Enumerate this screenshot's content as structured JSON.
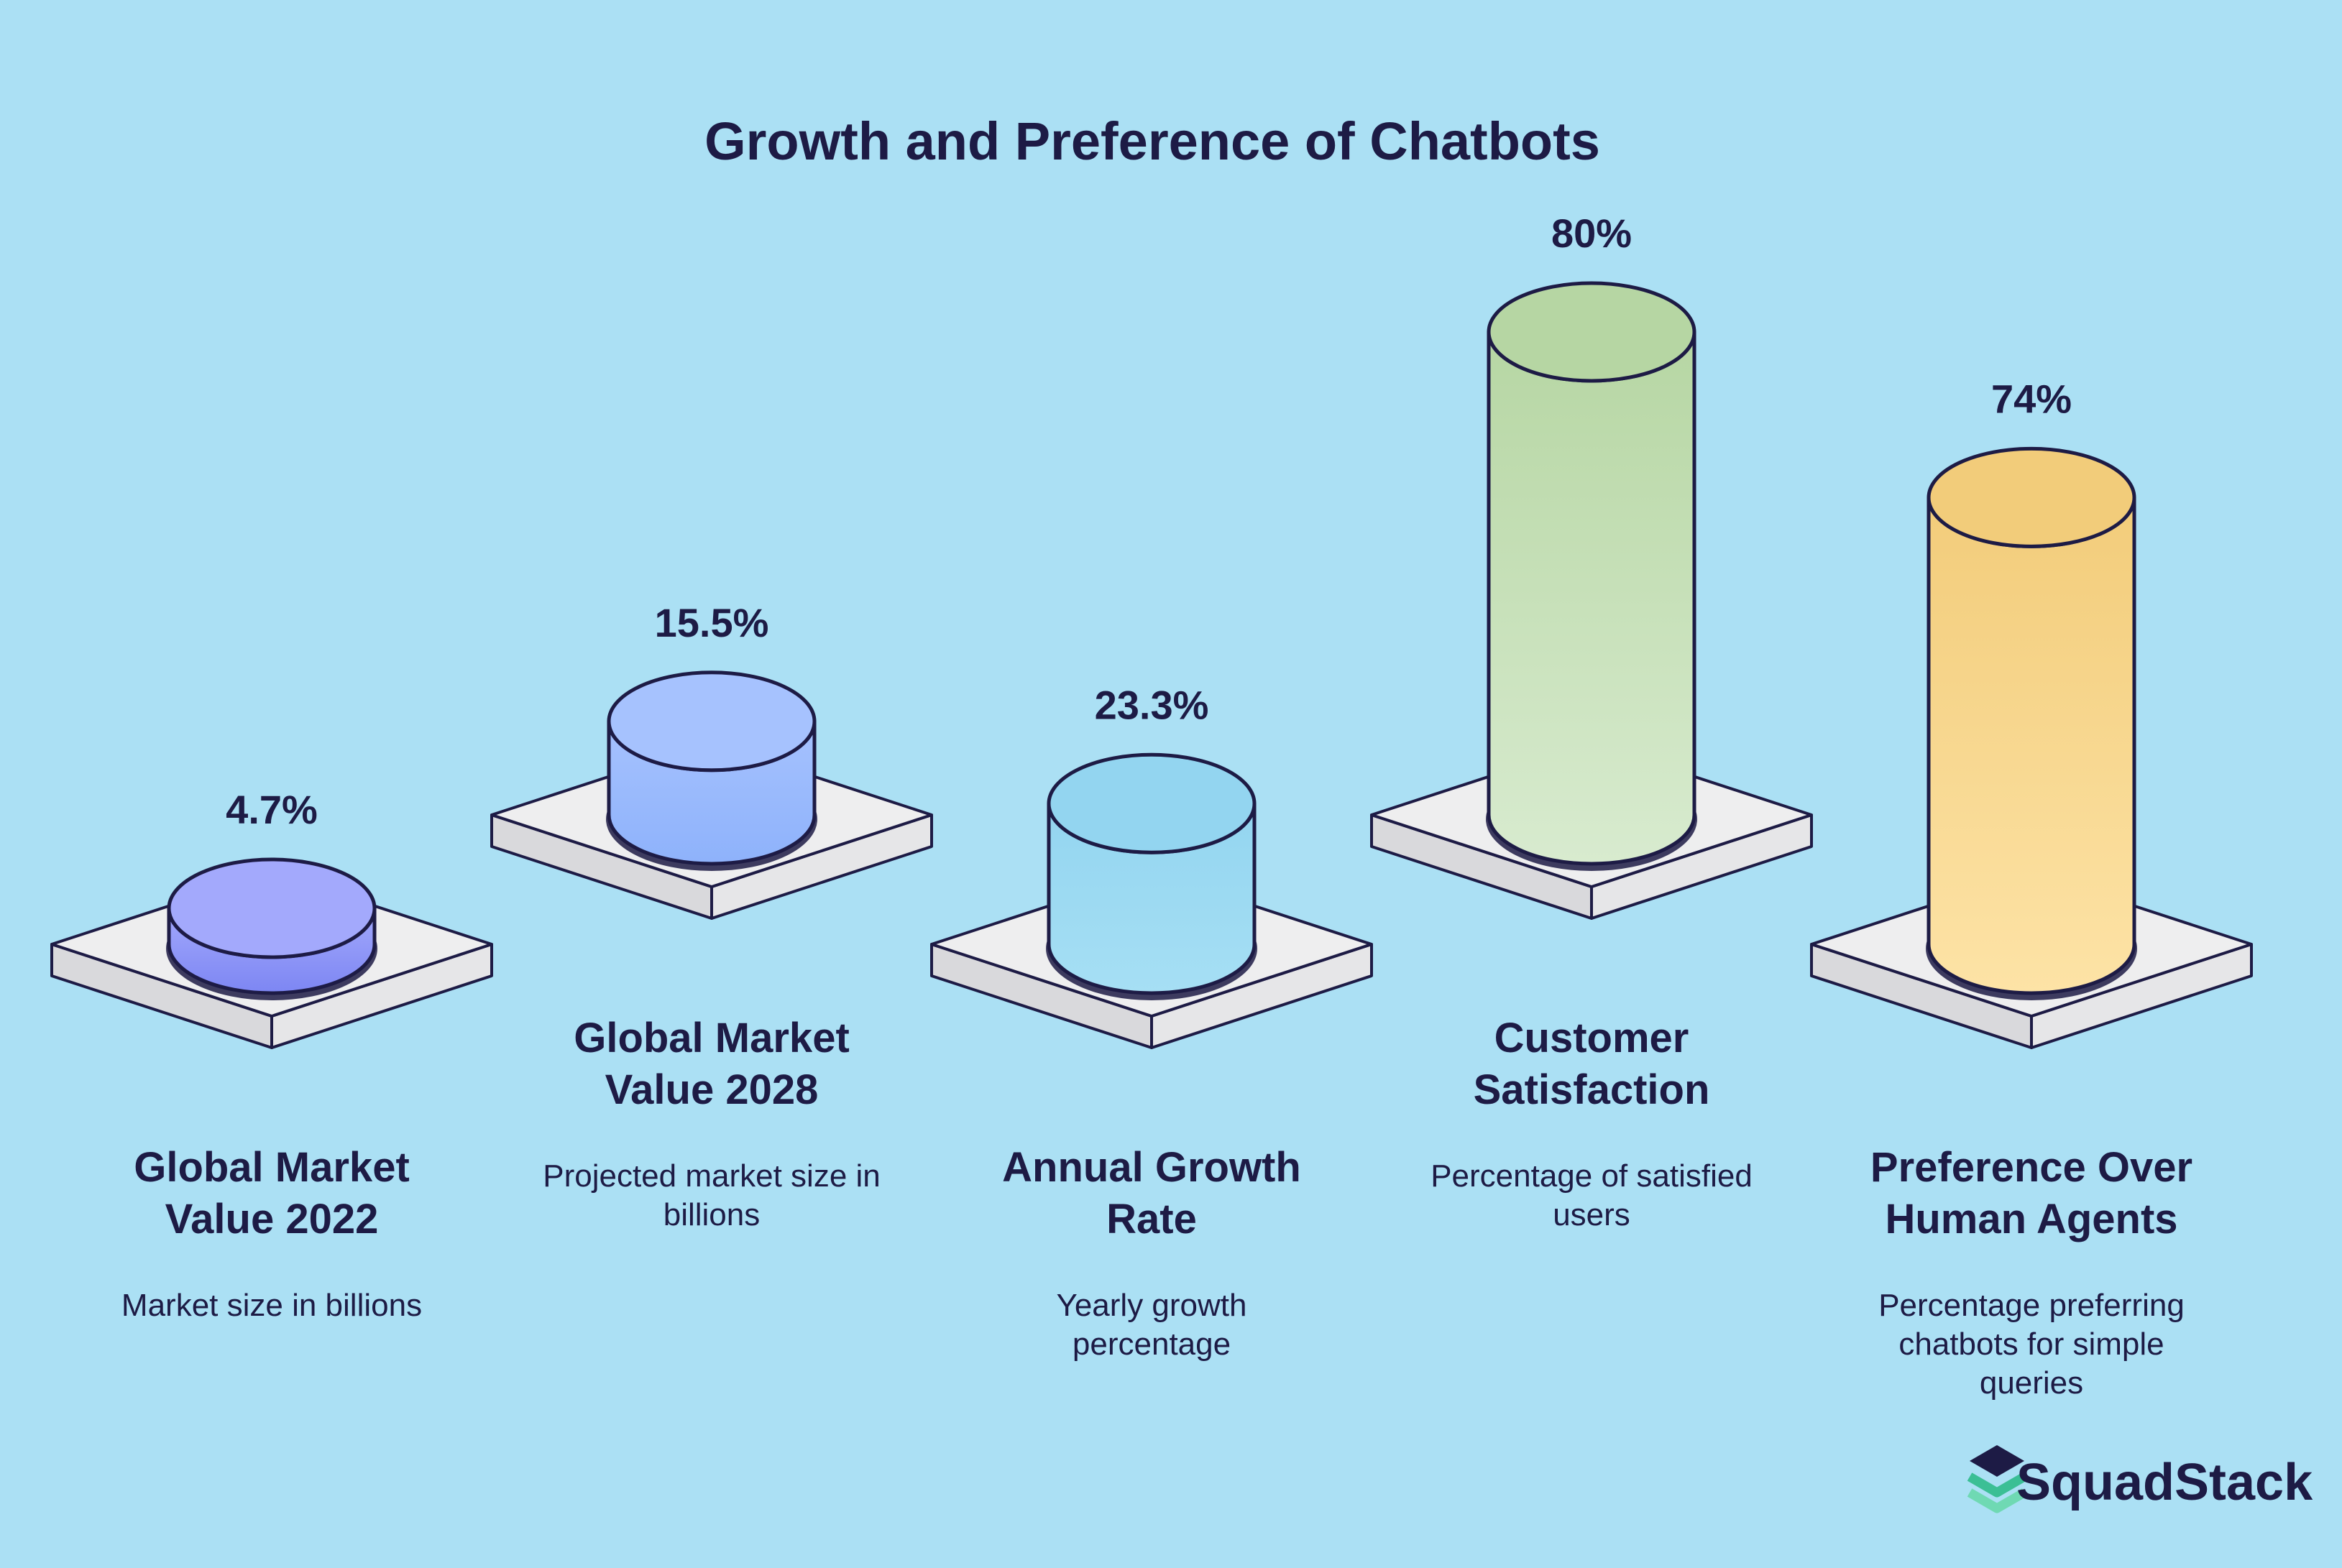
{
  "chart_data": {
    "type": "bar",
    "title": "Growth and Preference of Chatbots",
    "categories": [
      "Global Market Value 2022",
      "Global Market Value 2028",
      "Annual Growth Rate",
      "Customer Satisfaction",
      "Preference Over Human Agents"
    ],
    "series": [
      {
        "values": [
          4.7,
          15.5,
          23.3,
          80,
          74
        ]
      }
    ],
    "bars": [
      {
        "value": 4.7,
        "value_label": "4.7%",
        "label_lines": [
          "Global Market",
          "Value 2022"
        ],
        "description_lines": [
          "Market size in billions"
        ],
        "color_top": "#a3a9fc",
        "color_bottom": "#7d86f3"
      },
      {
        "value": 15.5,
        "value_label": "15.5%",
        "label_lines": [
          "Global Market",
          "Value 2028"
        ],
        "description_lines": [
          "Projected market size in",
          "billions"
        ],
        "color_top": "#a6c2fe",
        "color_bottom": "#8eb2fb"
      },
      {
        "value": 23.3,
        "value_label": "23.3%",
        "label_lines": [
          "Annual Growth",
          "Rate"
        ],
        "description_lines": [
          "Yearly growth",
          "percentage"
        ],
        "color_top": "#93d5f0",
        "color_bottom": "#a6dff4"
      },
      {
        "value": 80,
        "value_label": "80%",
        "label_lines": [
          "Customer",
          "Satisfaction"
        ],
        "description_lines": [
          "Percentage of satisfied",
          "users"
        ],
        "color_top": "#b6d6a3",
        "color_bottom": "#d8ebcf"
      },
      {
        "value": 74,
        "value_label": "74%",
        "label_lines": [
          "Preference Over",
          "Human Agents"
        ],
        "description_lines": [
          "Percentage preferring",
          "chatbots for simple",
          "queries"
        ],
        "color_top": "#f2cc7a",
        "color_bottom": "#fde3a6"
      }
    ],
    "grid": false,
    "legend": "none"
  },
  "brand": {
    "name": "SquadStack",
    "icon": "stacked-layers-icon",
    "icon_colors": [
      "#1d1b45",
      "#3bbf95",
      "#6fd9b3"
    ]
  },
  "colors": {
    "background": "#abe0f4",
    "text": "#1d1b45",
    "platform_top": "#eeeeef",
    "platform_side": "#d9d9dc",
    "outline": "#1d1b45"
  }
}
